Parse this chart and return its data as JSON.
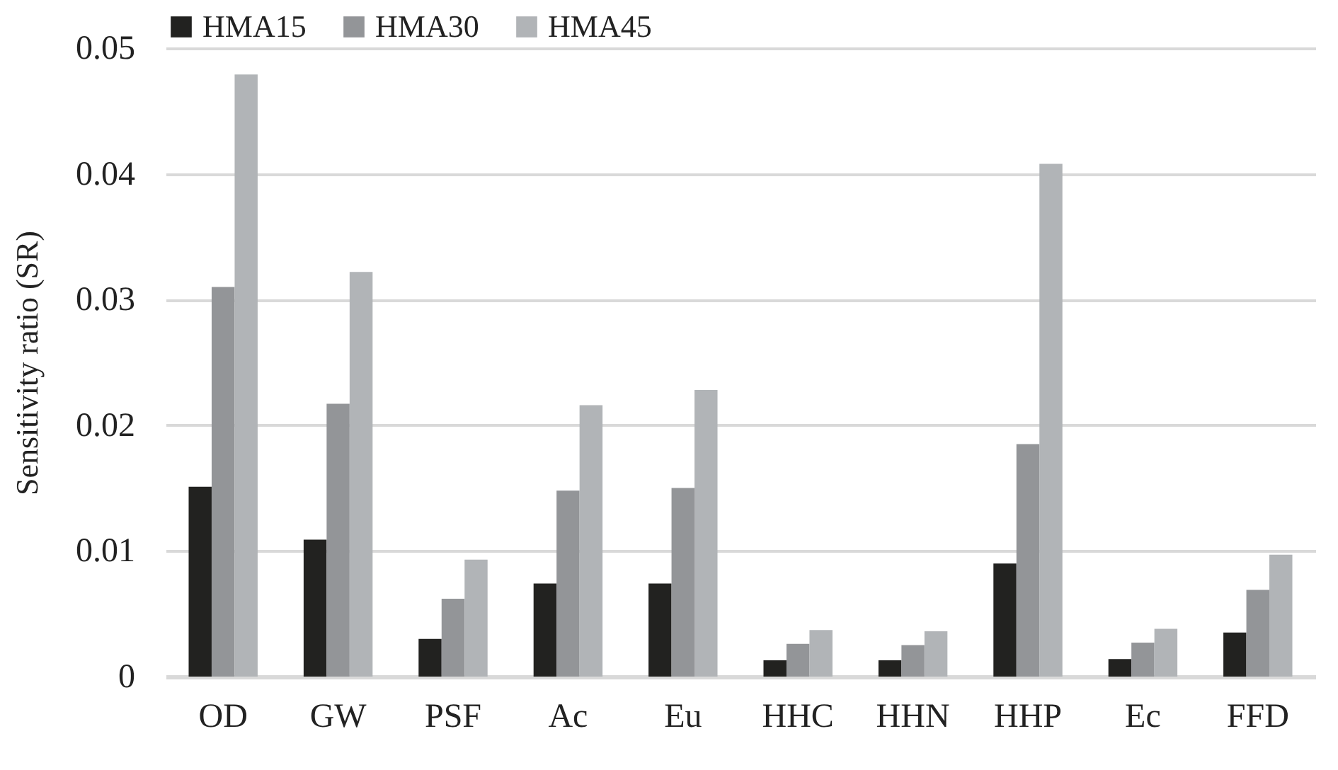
{
  "chart_data": {
    "type": "bar",
    "ylabel": "Sensitivity ratio (SR)",
    "categories": [
      "OD",
      "GW",
      "PSF",
      "Ac",
      "Eu",
      "HHC",
      "HHN",
      "HHP",
      "Ec",
      "FFD"
    ],
    "series": [
      {
        "name": "HMA15",
        "color": "#222220",
        "values": [
          0.0151,
          0.0109,
          0.003,
          0.0074,
          0.0074,
          0.0013,
          0.0013,
          0.009,
          0.0014,
          0.0035
        ]
      },
      {
        "name": "HMA30",
        "color": "#939598",
        "values": [
          0.031,
          0.0217,
          0.0062,
          0.0148,
          0.015,
          0.0026,
          0.0025,
          0.0185,
          0.0027,
          0.0069
        ]
      },
      {
        "name": "HMA45",
        "color": "#b1b4b7",
        "values": [
          0.0479,
          0.0322,
          0.0093,
          0.0216,
          0.0228,
          0.0037,
          0.0036,
          0.0408,
          0.0038,
          0.0097
        ]
      }
    ],
    "ylim": [
      0,
      0.05
    ],
    "yticks": [
      0,
      0.01,
      0.02,
      0.03,
      0.04,
      0.05
    ],
    "grid": "y",
    "legend": "top"
  }
}
